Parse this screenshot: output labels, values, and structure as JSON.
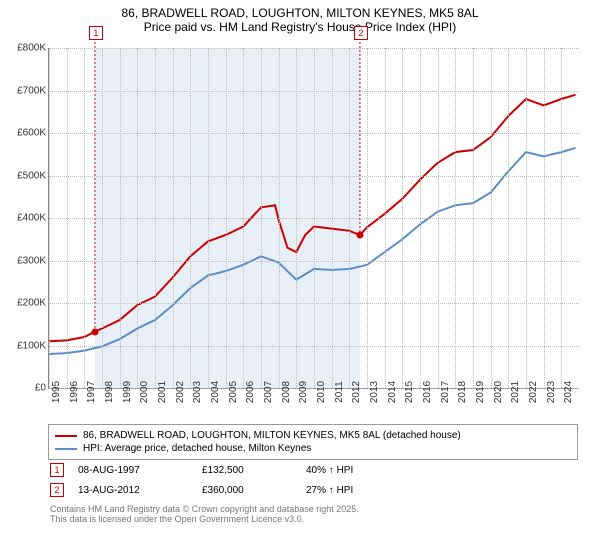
{
  "title": "86, BRADWELL ROAD, LOUGHTON, MILTON KEYNES, MK5 8AL",
  "subtitle": "Price paid vs. HM Land Registry's House Price Index (HPI)",
  "chart": {
    "type": "line",
    "background_color": "#ffffff",
    "grid_color": "#bbbbbb",
    "shaded_color": "#e8eff6",
    "x_years": [
      1995,
      1996,
      1997,
      1998,
      1999,
      2000,
      2001,
      2002,
      2003,
      2004,
      2005,
      2006,
      2007,
      2008,
      2009,
      2010,
      2011,
      2012,
      2013,
      2014,
      2015,
      2016,
      2017,
      2018,
      2019,
      2020,
      2021,
      2022,
      2023,
      2024
    ],
    "y_ticks": [
      0,
      100000,
      200000,
      300000,
      400000,
      500000,
      600000,
      700000,
      800000
    ],
    "y_labels": [
      "£0",
      "£100K",
      "£200K",
      "£300K",
      "£400K",
      "£500K",
      "£600K",
      "£700K",
      "£800K"
    ],
    "ymin": 0,
    "ymax": 800000,
    "xmin": 1995,
    "xmax": 2025,
    "shaded_ranges": [
      [
        1997.6,
        2012.6
      ]
    ],
    "series": [
      {
        "name": "red",
        "label": "86, BRADWELL ROAD, LOUGHTON, MILTON KEYNES, MK5 8AL (detached house)",
        "color": "#cc0000",
        "line_width": 2,
        "points": [
          [
            1995,
            110000
          ],
          [
            1996,
            112000
          ],
          [
            1997,
            120000
          ],
          [
            1997.6,
            132500
          ],
          [
            1998,
            140000
          ],
          [
            1999,
            160000
          ],
          [
            2000,
            195000
          ],
          [
            2001,
            215000
          ],
          [
            2002,
            260000
          ],
          [
            2003,
            310000
          ],
          [
            2004,
            345000
          ],
          [
            2005,
            360000
          ],
          [
            2006,
            380000
          ],
          [
            2007,
            425000
          ],
          [
            2007.8,
            430000
          ],
          [
            2008,
            395000
          ],
          [
            2008.5,
            330000
          ],
          [
            2009,
            320000
          ],
          [
            2009.5,
            360000
          ],
          [
            2010,
            380000
          ],
          [
            2011,
            375000
          ],
          [
            2012,
            370000
          ],
          [
            2012.6,
            360000
          ],
          [
            2013,
            378000
          ],
          [
            2014,
            410000
          ],
          [
            2015,
            445000
          ],
          [
            2016,
            490000
          ],
          [
            2017,
            530000
          ],
          [
            2018,
            555000
          ],
          [
            2019,
            560000
          ],
          [
            2020,
            590000
          ],
          [
            2021,
            640000
          ],
          [
            2022,
            680000
          ],
          [
            2023,
            665000
          ],
          [
            2024,
            680000
          ],
          [
            2024.8,
            690000
          ]
        ]
      },
      {
        "name": "blue",
        "label": "HPI: Average price, detached house, Milton Keynes",
        "color": "#5b8ec4",
        "line_width": 2,
        "points": [
          [
            1995,
            80000
          ],
          [
            1996,
            82000
          ],
          [
            1997,
            88000
          ],
          [
            1998,
            98000
          ],
          [
            1999,
            115000
          ],
          [
            2000,
            140000
          ],
          [
            2001,
            160000
          ],
          [
            2002,
            195000
          ],
          [
            2003,
            235000
          ],
          [
            2004,
            265000
          ],
          [
            2005,
            275000
          ],
          [
            2006,
            290000
          ],
          [
            2007,
            310000
          ],
          [
            2008,
            295000
          ],
          [
            2009,
            255000
          ],
          [
            2010,
            280000
          ],
          [
            2011,
            278000
          ],
          [
            2012,
            280000
          ],
          [
            2013,
            290000
          ],
          [
            2014,
            320000
          ],
          [
            2015,
            350000
          ],
          [
            2016,
            385000
          ],
          [
            2017,
            415000
          ],
          [
            2018,
            430000
          ],
          [
            2019,
            435000
          ],
          [
            2020,
            460000
          ],
          [
            2021,
            510000
          ],
          [
            2022,
            555000
          ],
          [
            2023,
            545000
          ],
          [
            2024,
            555000
          ],
          [
            2024.8,
            565000
          ]
        ]
      }
    ],
    "markers": [
      {
        "n": "1",
        "x": 1997.6,
        "y": 132500
      },
      {
        "n": "2",
        "x": 2012.6,
        "y": 360000
      }
    ],
    "marker_box_color": "#cc0000"
  },
  "transactions": [
    {
      "n": "1",
      "date": "08-AUG-1997",
      "price": "£132,500",
      "pct": "40% ↑ HPI"
    },
    {
      "n": "2",
      "date": "13-AUG-2012",
      "price": "£360,000",
      "pct": "27% ↑ HPI"
    }
  ],
  "footer_line1": "Contains HM Land Registry data © Crown copyright and database right 2025.",
  "footer_line2": "This data is licensed under the Open Government Licence v3.0."
}
